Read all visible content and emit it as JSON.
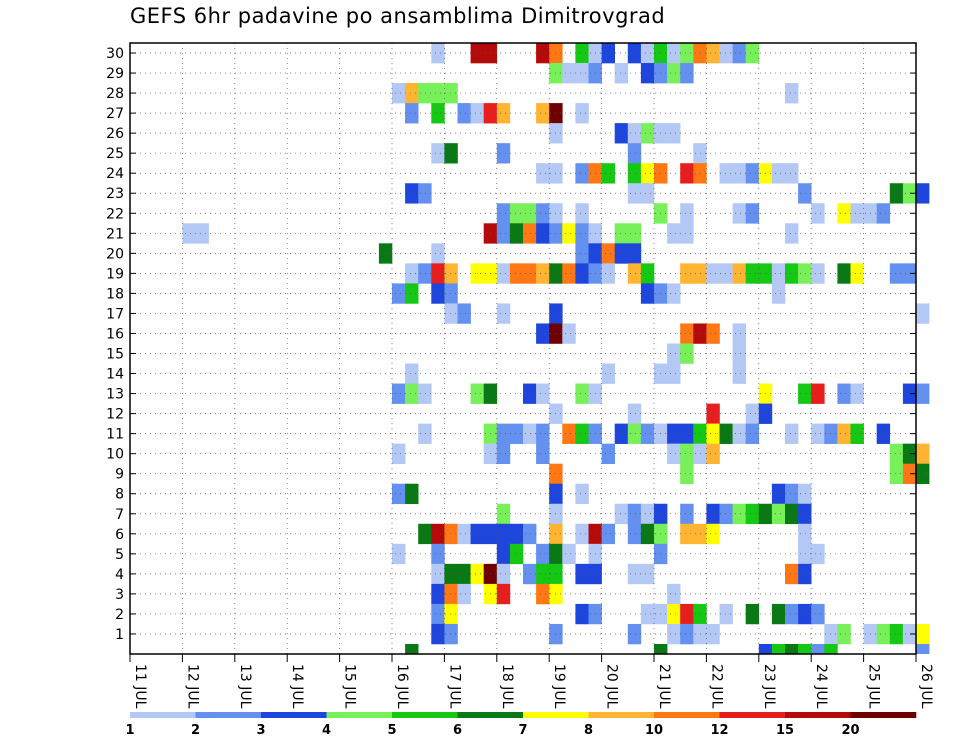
{
  "chart_data": {
    "type": "heatmap",
    "title": "GEFS 6hr padavine po ansamblima Dimitrovgrad",
    "xlabel": "",
    "ylabel": "",
    "x_tick_labels": [
      "11 JUL",
      "12 JUL",
      "13 JUL",
      "14 JUL",
      "15 JUL",
      "16 JUL",
      "17 JUL",
      "18 JUL",
      "19 JUL",
      "20 JUL",
      "21 JUL",
      "22 JUL",
      "23 JUL",
      "24 JUL",
      "25 JUL",
      "26 JUL"
    ],
    "y_tick_labels": [
      "1",
      "2",
      "3",
      "4",
      "5",
      "6",
      "7",
      "8",
      "9",
      "10",
      "11",
      "12",
      "13",
      "14",
      "15",
      "16",
      "17",
      "18",
      "19",
      "20",
      "21",
      "22",
      "23",
      "24",
      "25",
      "26",
      "27",
      "28",
      "29",
      "30"
    ],
    "x_range_days": [
      11,
      26
    ],
    "y_range_members": [
      0,
      30
    ],
    "step_hours": 6,
    "grid": true,
    "legend_position": "bottom",
    "color_scale": {
      "boundary_labels": [
        "1",
        "2",
        "3",
        "4",
        "5",
        "6",
        "7",
        "8",
        "10",
        "12",
        "15",
        "20"
      ],
      "colors": [
        "#b4c8f5",
        "#6490f0",
        "#1e46dc",
        "#78f05a",
        "#14c814",
        "#0a7814",
        "#ffff00",
        "#ffb432",
        "#ff7814",
        "#e61e1e",
        "#b40a0a",
        "#6e0000"
      ]
    },
    "levels_note": "cells: [member (1-30), step index from 11 JUL 00UTC (6h steps), color level index 0-11]",
    "cells": [
      [
        30,
        23,
        0
      ],
      [
        30,
        26,
        10
      ],
      [
        30,
        27,
        10
      ],
      [
        30,
        31,
        10
      ],
      [
        30,
        32,
        8
      ],
      [
        30,
        34,
        4
      ],
      [
        30,
        35,
        0
      ],
      [
        30,
        36,
        2
      ],
      [
        30,
        38,
        2
      ],
      [
        30,
        39,
        0
      ],
      [
        30,
        40,
        4
      ],
      [
        30,
        41,
        0
      ],
      [
        30,
        42,
        3
      ],
      [
        30,
        43,
        8
      ],
      [
        30,
        44,
        7
      ],
      [
        30,
        45,
        0
      ],
      [
        30,
        46,
        1
      ],
      [
        30,
        47,
        3
      ],
      [
        29,
        32,
        3
      ],
      [
        29,
        33,
        0
      ],
      [
        29,
        34,
        0
      ],
      [
        29,
        35,
        1
      ],
      [
        29,
        37,
        0
      ],
      [
        29,
        39,
        2
      ],
      [
        29,
        40,
        1
      ],
      [
        29,
        41,
        3
      ],
      [
        29,
        42,
        1
      ],
      [
        28,
        20,
        0
      ],
      [
        28,
        21,
        7
      ],
      [
        28,
        22,
        3
      ],
      [
        28,
        23,
        3
      ],
      [
        28,
        24,
        3
      ],
      [
        28,
        50,
        0
      ],
      [
        27,
        21,
        1
      ],
      [
        27,
        23,
        4
      ],
      [
        27,
        25,
        1
      ],
      [
        27,
        26,
        0
      ],
      [
        27,
        27,
        9
      ],
      [
        27,
        28,
        7
      ],
      [
        27,
        31,
        7
      ],
      [
        27,
        32,
        11
      ],
      [
        27,
        34,
        0
      ],
      [
        26,
        32,
        0
      ],
      [
        26,
        37,
        2
      ],
      [
        26,
        38,
        0
      ],
      [
        26,
        39,
        3
      ],
      [
        26,
        40,
        0
      ],
      [
        26,
        41,
        0
      ],
      [
        25,
        23,
        0
      ],
      [
        25,
        24,
        5
      ],
      [
        25,
        28,
        1
      ],
      [
        25,
        38,
        1
      ],
      [
        25,
        43,
        0
      ],
      [
        24,
        31,
        0
      ],
      [
        24,
        32,
        0
      ],
      [
        24,
        34,
        1
      ],
      [
        24,
        35,
        8
      ],
      [
        24,
        36,
        4
      ],
      [
        24,
        38,
        4
      ],
      [
        24,
        39,
        6
      ],
      [
        24,
        40,
        8
      ],
      [
        24,
        42,
        9
      ],
      [
        24,
        43,
        8
      ],
      [
        24,
        45,
        0
      ],
      [
        24,
        46,
        0
      ],
      [
        24,
        47,
        1
      ],
      [
        24,
        48,
        6
      ],
      [
        24,
        49,
        0
      ],
      [
        24,
        50,
        0
      ],
      [
        23,
        21,
        2
      ],
      [
        23,
        22,
        1
      ],
      [
        23,
        38,
        0
      ],
      [
        23,
        39,
        0
      ],
      [
        23,
        51,
        1
      ],
      [
        23,
        58,
        5
      ],
      [
        23,
        59,
        3
      ],
      [
        23,
        60,
        2
      ],
      [
        22,
        28,
        1
      ],
      [
        22,
        29,
        3
      ],
      [
        22,
        30,
        3
      ],
      [
        22,
        31,
        1
      ],
      [
        22,
        32,
        0
      ],
      [
        22,
        34,
        0
      ],
      [
        22,
        40,
        3
      ],
      [
        22,
        42,
        0
      ],
      [
        22,
        46,
        0
      ],
      [
        22,
        47,
        1
      ],
      [
        22,
        52,
        0
      ],
      [
        22,
        54,
        6
      ],
      [
        22,
        55,
        0
      ],
      [
        22,
        56,
        0
      ],
      [
        22,
        57,
        1
      ],
      [
        21,
        4,
        0
      ],
      [
        21,
        5,
        0
      ],
      [
        21,
        27,
        10
      ],
      [
        21,
        28,
        1
      ],
      [
        21,
        29,
        5
      ],
      [
        21,
        30,
        8
      ],
      [
        21,
        31,
        2
      ],
      [
        21,
        32,
        1
      ],
      [
        21,
        33,
        6
      ],
      [
        21,
        34,
        1
      ],
      [
        21,
        35,
        0
      ],
      [
        21,
        37,
        3
      ],
      [
        21,
        38,
        3
      ],
      [
        21,
        41,
        0
      ],
      [
        21,
        42,
        0
      ],
      [
        21,
        50,
        0
      ],
      [
        20,
        19,
        5
      ],
      [
        20,
        23,
        0
      ],
      [
        20,
        34,
        1
      ],
      [
        20,
        35,
        2
      ],
      [
        20,
        36,
        8
      ],
      [
        20,
        37,
        2
      ],
      [
        20,
        38,
        2
      ],
      [
        19,
        21,
        0
      ],
      [
        19,
        22,
        1
      ],
      [
        19,
        23,
        9
      ],
      [
        19,
        24,
        7
      ],
      [
        19,
        26,
        6
      ],
      [
        19,
        27,
        6
      ],
      [
        19,
        28,
        0
      ],
      [
        19,
        29,
        8
      ],
      [
        19,
        30,
        8
      ],
      [
        19,
        31,
        7
      ],
      [
        19,
        32,
        5
      ],
      [
        19,
        33,
        8
      ],
      [
        19,
        34,
        2
      ],
      [
        19,
        35,
        1
      ],
      [
        19,
        36,
        0
      ],
      [
        19,
        38,
        7
      ],
      [
        19,
        39,
        4
      ],
      [
        19,
        42,
        7
      ],
      [
        19,
        43,
        7
      ],
      [
        19,
        44,
        0
      ],
      [
        19,
        45,
        0
      ],
      [
        19,
        46,
        7
      ],
      [
        19,
        47,
        4
      ],
      [
        19,
        48,
        4
      ],
      [
        19,
        49,
        0
      ],
      [
        19,
        50,
        4
      ],
      [
        19,
        51,
        3
      ],
      [
        19,
        52,
        0
      ],
      [
        19,
        54,
        5
      ],
      [
        19,
        55,
        6
      ],
      [
        19,
        58,
        1
      ],
      [
        19,
        59,
        1
      ],
      [
        18,
        20,
        1
      ],
      [
        18,
        21,
        4
      ],
      [
        18,
        23,
        2
      ],
      [
        18,
        24,
        1
      ],
      [
        18,
        39,
        2
      ],
      [
        18,
        40,
        1
      ],
      [
        18,
        41,
        0
      ],
      [
        18,
        49,
        0
      ],
      [
        17,
        24,
        0
      ],
      [
        17,
        25,
        1
      ],
      [
        17,
        28,
        0
      ],
      [
        17,
        32,
        2
      ],
      [
        17,
        60,
        0
      ],
      [
        16,
        31,
        2
      ],
      [
        16,
        32,
        11
      ],
      [
        16,
        33,
        0
      ],
      [
        16,
        42,
        8
      ],
      [
        16,
        43,
        10
      ],
      [
        16,
        44,
        8
      ],
      [
        16,
        46,
        0
      ],
      [
        15,
        41,
        0
      ],
      [
        15,
        42,
        3
      ],
      [
        15,
        46,
        0
      ],
      [
        14,
        21,
        0
      ],
      [
        14,
        36,
        0
      ],
      [
        14,
        40,
        0
      ],
      [
        14,
        41,
        0
      ],
      [
        14,
        46,
        0
      ],
      [
        13,
        20,
        1
      ],
      [
        13,
        21,
        3
      ],
      [
        13,
        22,
        0
      ],
      [
        13,
        26,
        3
      ],
      [
        13,
        27,
        5
      ],
      [
        13,
        30,
        2
      ],
      [
        13,
        31,
        0
      ],
      [
        13,
        34,
        3
      ],
      [
        13,
        35,
        0
      ],
      [
        13,
        48,
        6
      ],
      [
        13,
        51,
        4
      ],
      [
        13,
        52,
        9
      ],
      [
        13,
        54,
        1
      ],
      [
        13,
        55,
        0
      ],
      [
        13,
        59,
        2
      ],
      [
        13,
        60,
        1
      ],
      [
        12,
        32,
        0
      ],
      [
        12,
        38,
        0
      ],
      [
        12,
        44,
        9
      ],
      [
        12,
        47,
        0
      ],
      [
        12,
        48,
        2
      ],
      [
        11,
        22,
        0
      ],
      [
        11,
        27,
        3
      ],
      [
        11,
        28,
        1
      ],
      [
        11,
        29,
        1
      ],
      [
        11,
        30,
        0
      ],
      [
        11,
        31,
        1
      ],
      [
        11,
        33,
        8
      ],
      [
        11,
        34,
        4
      ],
      [
        11,
        35,
        1
      ],
      [
        11,
        37,
        2
      ],
      [
        11,
        38,
        3
      ],
      [
        11,
        39,
        1
      ],
      [
        11,
        40,
        0
      ],
      [
        11,
        41,
        2
      ],
      [
        11,
        42,
        2
      ],
      [
        11,
        43,
        4
      ],
      [
        11,
        44,
        6
      ],
      [
        11,
        45,
        5
      ],
      [
        11,
        46,
        0
      ],
      [
        11,
        47,
        1
      ],
      [
        11,
        50,
        0
      ],
      [
        11,
        52,
        0
      ],
      [
        11,
        53,
        1
      ],
      [
        11,
        54,
        7
      ],
      [
        11,
        55,
        4
      ],
      [
        11,
        57,
        2
      ],
      [
        10,
        20,
        0
      ],
      [
        10,
        27,
        0
      ],
      [
        10,
        28,
        1
      ],
      [
        10,
        31,
        1
      ],
      [
        10,
        36,
        1
      ],
      [
        10,
        41,
        0
      ],
      [
        10,
        42,
        3
      ],
      [
        10,
        43,
        0
      ],
      [
        10,
        44,
        7
      ],
      [
        10,
        58,
        3
      ],
      [
        10,
        59,
        5
      ],
      [
        10,
        60,
        7
      ],
      [
        9,
        32,
        8
      ],
      [
        9,
        42,
        3
      ],
      [
        9,
        58,
        3
      ],
      [
        9,
        59,
        8
      ],
      [
        9,
        60,
        5
      ],
      [
        8,
        20,
        1
      ],
      [
        8,
        21,
        5
      ],
      [
        8,
        32,
        2
      ],
      [
        8,
        34,
        0
      ],
      [
        8,
        49,
        2
      ],
      [
        8,
        50,
        1
      ],
      [
        8,
        51,
        0
      ],
      [
        7,
        28,
        3
      ],
      [
        7,
        32,
        0
      ],
      [
        7,
        37,
        0
      ],
      [
        7,
        38,
        1
      ],
      [
        7,
        39,
        0
      ],
      [
        7,
        40,
        2
      ],
      [
        7,
        42,
        1
      ],
      [
        7,
        44,
        2
      ],
      [
        7,
        45,
        1
      ],
      [
        7,
        46,
        3
      ],
      [
        7,
        47,
        4
      ],
      [
        7,
        48,
        5
      ],
      [
        7,
        49,
        3
      ],
      [
        7,
        50,
        5
      ],
      [
        7,
        51,
        2
      ],
      [
        6,
        22,
        5
      ],
      [
        6,
        23,
        10
      ],
      [
        6,
        24,
        8
      ],
      [
        6,
        25,
        0
      ],
      [
        6,
        26,
        2
      ],
      [
        6,
        27,
        2
      ],
      [
        6,
        28,
        2
      ],
      [
        6,
        29,
        2
      ],
      [
        6,
        30,
        1
      ],
      [
        6,
        32,
        7
      ],
      [
        6,
        34,
        0
      ],
      [
        6,
        35,
        10
      ],
      [
        6,
        36,
        1
      ],
      [
        6,
        38,
        1
      ],
      [
        6,
        39,
        5
      ],
      [
        6,
        40,
        3
      ],
      [
        6,
        42,
        7
      ],
      [
        6,
        43,
        7
      ],
      [
        6,
        44,
        6
      ],
      [
        6,
        51,
        0
      ],
      [
        5,
        20,
        0
      ],
      [
        5,
        23,
        1
      ],
      [
        5,
        28,
        2
      ],
      [
        5,
        29,
        4
      ],
      [
        5,
        31,
        1
      ],
      [
        5,
        32,
        5
      ],
      [
        5,
        33,
        0
      ],
      [
        5,
        35,
        0
      ],
      [
        5,
        40,
        1
      ],
      [
        5,
        51,
        0
      ],
      [
        5,
        52,
        0
      ],
      [
        4,
        23,
        0
      ],
      [
        4,
        24,
        5
      ],
      [
        4,
        25,
        5
      ],
      [
        4,
        26,
        6
      ],
      [
        4,
        27,
        11
      ],
      [
        4,
        28,
        0
      ],
      [
        4,
        30,
        1
      ],
      [
        4,
        31,
        4
      ],
      [
        4,
        32,
        4
      ],
      [
        4,
        34,
        2
      ],
      [
        4,
        35,
        2
      ],
      [
        4,
        38,
        0
      ],
      [
        4,
        39,
        0
      ],
      [
        4,
        50,
        8
      ],
      [
        4,
        51,
        2
      ],
      [
        3,
        23,
        2
      ],
      [
        3,
        24,
        8
      ],
      [
        3,
        25,
        0
      ],
      [
        3,
        27,
        6
      ],
      [
        3,
        28,
        9
      ],
      [
        3,
        31,
        8
      ],
      [
        3,
        32,
        6
      ],
      [
        3,
        41,
        0
      ],
      [
        2,
        23,
        1
      ],
      [
        2,
        24,
        6
      ],
      [
        2,
        34,
        2
      ],
      [
        2,
        35,
        1
      ],
      [
        2,
        39,
        0
      ],
      [
        2,
        40,
        0
      ],
      [
        2,
        41,
        6
      ],
      [
        2,
        42,
        9
      ],
      [
        2,
        43,
        4
      ],
      [
        2,
        45,
        0
      ],
      [
        2,
        47,
        5
      ],
      [
        2,
        49,
        5
      ],
      [
        2,
        50,
        1
      ],
      [
        2,
        51,
        2
      ],
      [
        2,
        52,
        1
      ],
      [
        1,
        23,
        2
      ],
      [
        1,
        24,
        1
      ],
      [
        1,
        32,
        1
      ],
      [
        1,
        38,
        1
      ],
      [
        1,
        41,
        0
      ],
      [
        1,
        42,
        1
      ],
      [
        1,
        43,
        0
      ],
      [
        1,
        44,
        0
      ],
      [
        1,
        53,
        0
      ],
      [
        1,
        54,
        3
      ],
      [
        1,
        56,
        0
      ],
      [
        1,
        57,
        3
      ],
      [
        1,
        58,
        4
      ],
      [
        1,
        59,
        0
      ],
      [
        1,
        60,
        6
      ]
    ],
    "bottom_strip": [
      [
        21,
        5
      ],
      [
        40,
        5
      ],
      [
        48,
        2
      ],
      [
        49,
        4
      ],
      [
        50,
        5
      ],
      [
        51,
        4
      ],
      [
        52,
        1
      ],
      [
        53,
        4
      ],
      [
        60,
        1
      ]
    ]
  }
}
